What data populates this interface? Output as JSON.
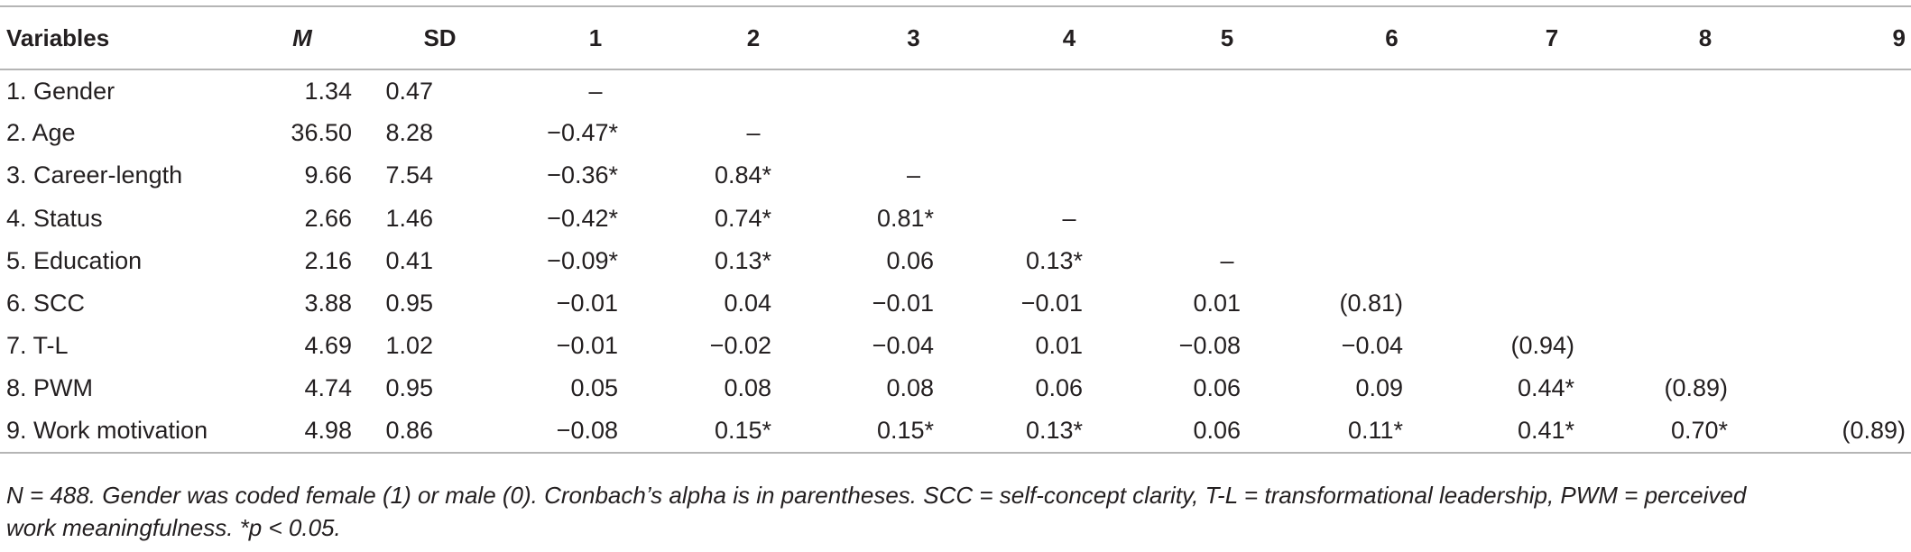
{
  "table": {
    "headers": [
      "Variables",
      "M",
      "SD",
      "1",
      "2",
      "3",
      "4",
      "5",
      "6",
      "7",
      "8",
      "9"
    ],
    "rows": [
      {
        "label": "1. Gender",
        "m": "1.34",
        "sd": "0.47",
        "c": [
          "–",
          "",
          "",
          "",
          "",
          "",
          "",
          "",
          ""
        ]
      },
      {
        "label": "2. Age",
        "m": "36.50",
        "sd": "8.28",
        "c": [
          "−0.47*",
          "–",
          "",
          "",
          "",
          "",
          "",
          "",
          ""
        ]
      },
      {
        "label": "3. Career-length",
        "m": "9.66",
        "sd": "7.54",
        "c": [
          "−0.36*",
          "0.84*",
          "–",
          "",
          "",
          "",
          "",
          "",
          ""
        ]
      },
      {
        "label": "4. Status",
        "m": "2.66",
        "sd": "1.46",
        "c": [
          "−0.42*",
          "0.74*",
          "0.81*",
          "–",
          "",
          "",
          "",
          "",
          ""
        ]
      },
      {
        "label": "5. Education",
        "m": "2.16",
        "sd": "0.41",
        "c": [
          "−0.09*",
          "0.13*",
          "0.06",
          "0.13*",
          "–",
          "",
          "",
          "",
          ""
        ]
      },
      {
        "label": "6. SCC",
        "m": "3.88",
        "sd": "0.95",
        "c": [
          "−0.01",
          "0.04",
          "−0.01",
          "−0.01",
          "0.01",
          "(0.81)",
          "",
          "",
          ""
        ]
      },
      {
        "label": "7. T-L",
        "m": "4.69",
        "sd": "1.02",
        "c": [
          "−0.01",
          "−0.02",
          "−0.04",
          "0.01",
          "−0.08",
          "−0.04",
          "(0.94)",
          "",
          ""
        ]
      },
      {
        "label": "8. PWM",
        "m": "4.74",
        "sd": "0.95",
        "c": [
          "0.05",
          "0.08",
          "0.08",
          "0.06",
          "0.06",
          "0.09",
          "0.44*",
          "(0.89)",
          ""
        ]
      },
      {
        "label": "9. Work motivation",
        "m": "4.98",
        "sd": "0.86",
        "c": [
          "−0.08",
          "0.15*",
          "0.15*",
          "0.13*",
          "0.06",
          "0.11*",
          "0.41*",
          "0.70*",
          "(0.89)"
        ]
      }
    ]
  },
  "note": {
    "line1": "N = 488. Gender was coded female (1) or male (0). Cronbach’s alpha is in parentheses. SCC = self-concept clarity, T-L = transformational leadership, PWM = perceived",
    "line2": "work meaningfulness. *p < 0.05."
  }
}
